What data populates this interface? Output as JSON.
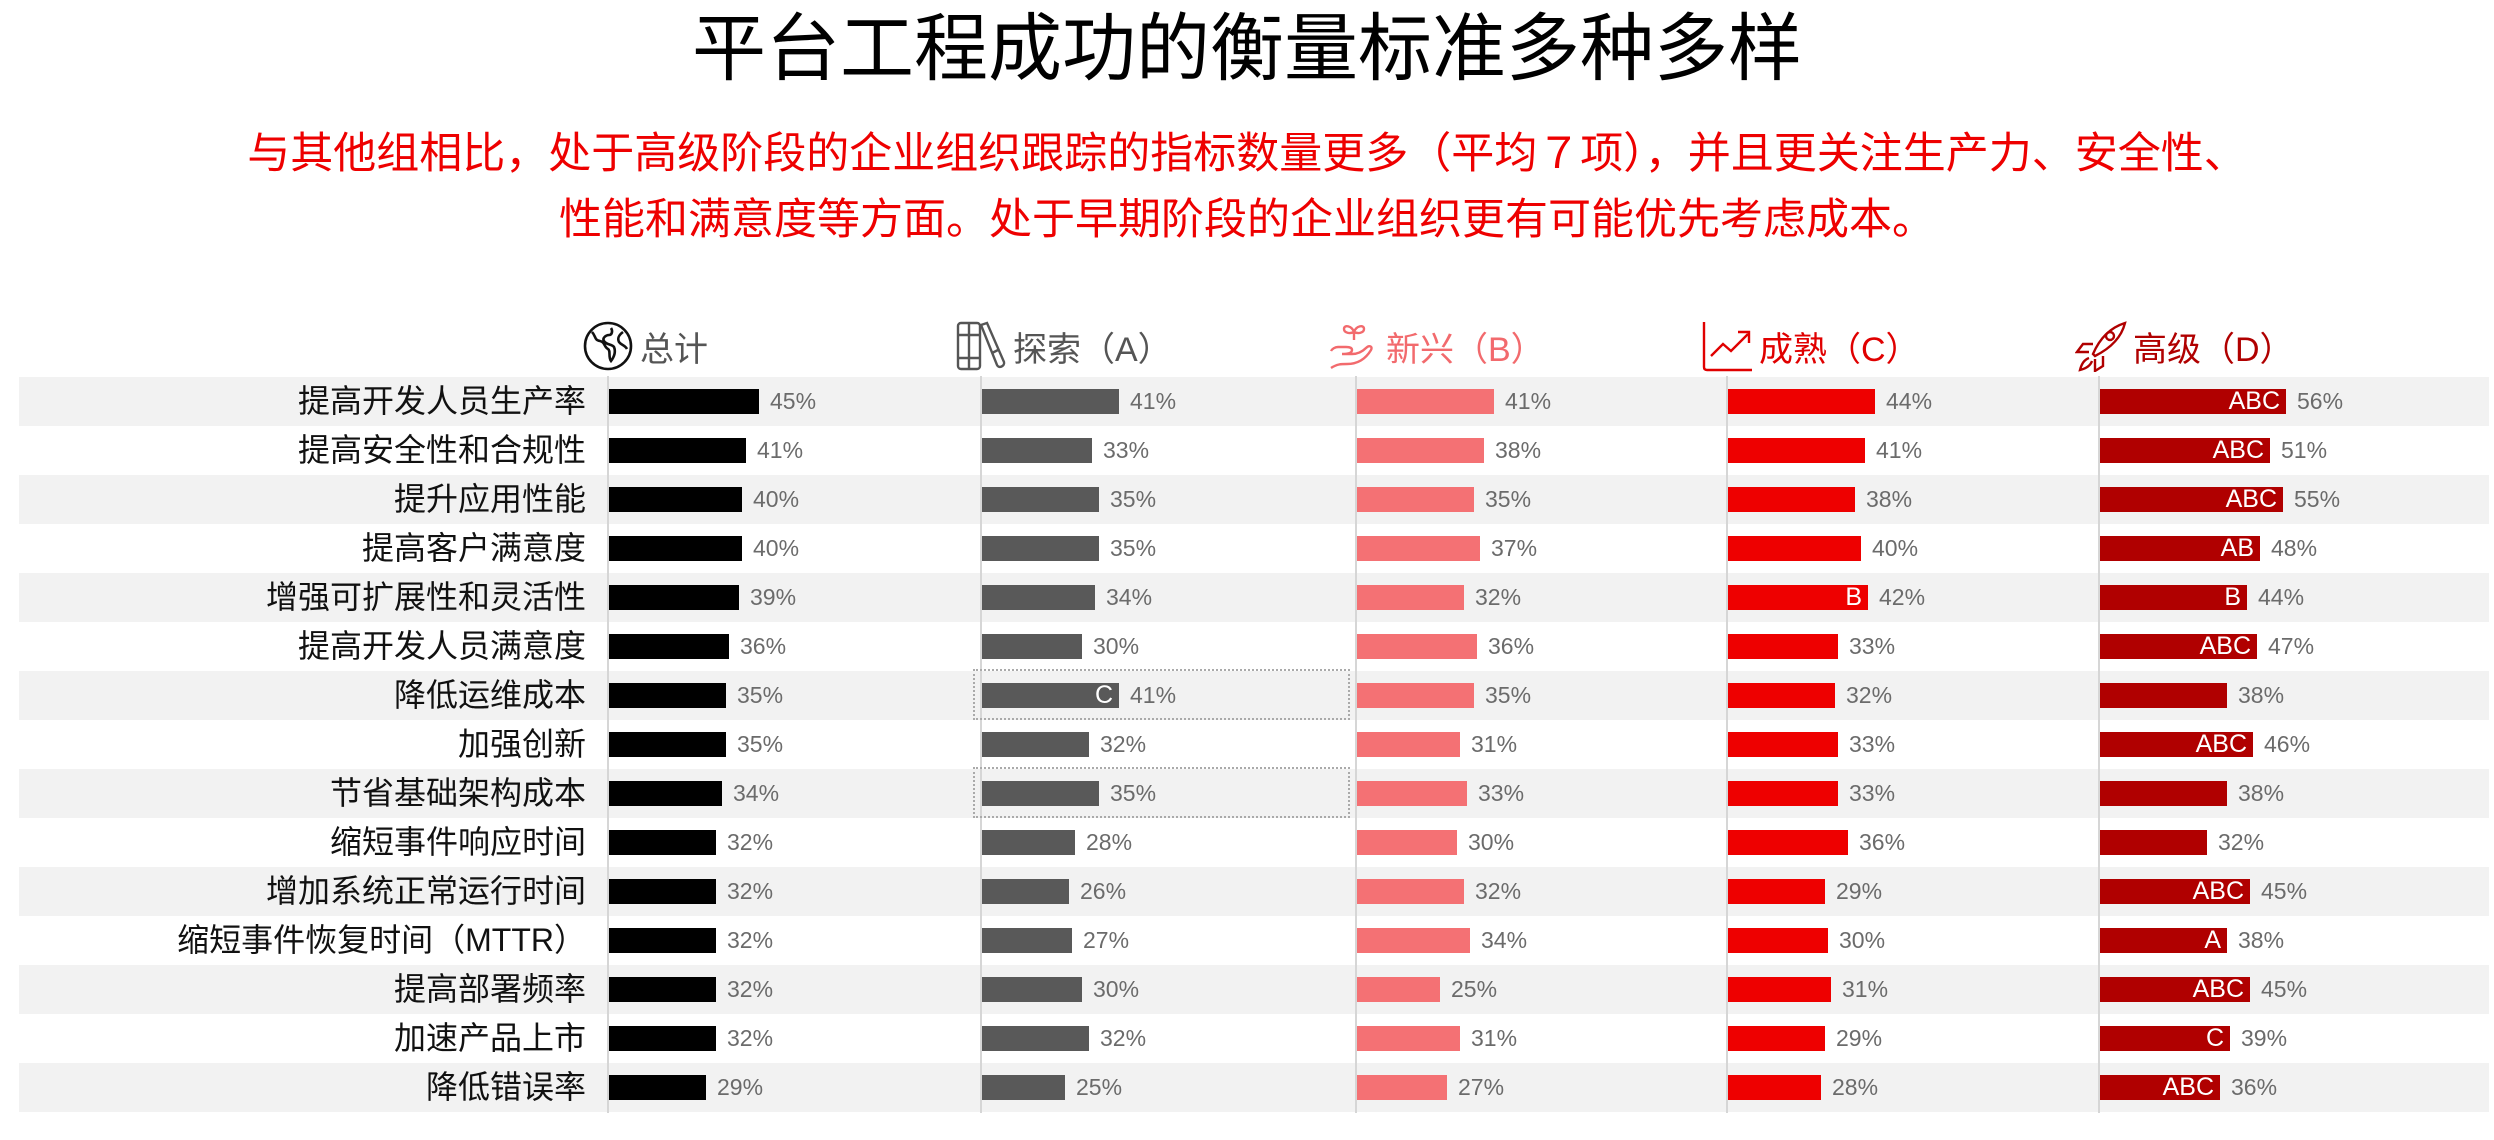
{
  "title": "平台工程成功的衡量标准多种多样",
  "subtitle_lines": [
    "与其他组相比，处于高级阶段的企业组织跟踪的指标数量更多（平均７项），并且更关注生产力、安全性、",
    "性能和满意度等方面。处于早期阶段的企业组织更有可能优先考虑成本。"
  ],
  "columns": [
    {
      "key": "total",
      "label": "总计",
      "icon": "globe-icon",
      "color": "#000000",
      "text_color": "#555555"
    },
    {
      "key": "A",
      "label": "探索（A）",
      "icon": "books-icon",
      "color": "#595959",
      "text_color": "#555555"
    },
    {
      "key": "B",
      "label": "新兴（B）",
      "icon": "sprout-hand-icon",
      "color": "#f47174",
      "text_color": "#f26a6d"
    },
    {
      "key": "C",
      "label": "成熟（C）",
      "icon": "growth-chart-icon",
      "color": "#ee0000",
      "text_color": "#e00000"
    },
    {
      "key": "D",
      "label": "高级（D）",
      "icon": "rocket-icon",
      "color": "#b00000",
      "text_color": "#b00000"
    }
  ],
  "chart_data": {
    "type": "bar",
    "orientation": "horizontal",
    "title": "平台工程成功的衡量标准多种多样",
    "subtitle": "与其他组相比，处于高级阶段的企业组织跟踪的指标数量更多（平均７项），并且更关注生产力、安全性、性能和满意度等方面。处于早期阶段的企业组织更有可能优先考虑成本。",
    "unit": "%",
    "categories": [
      "提高开发人员生产率",
      "提高安全性和合规性",
      "提升应用性能",
      "提高客户满意度",
      "增强可扩展性和灵活性",
      "提高开发人员满意度",
      "降低运维成本",
      "加强创新",
      "节省基础架构成本",
      "缩短事件响应时间",
      "增加系统正常运行时间",
      "缩短事件恢复时间（MTTR）",
      "提高部署频率",
      "加速产品上市",
      "降低错误率"
    ],
    "series": [
      {
        "name": "总计",
        "values": [
          45,
          41,
          40,
          40,
          39,
          36,
          35,
          35,
          34,
          32,
          32,
          32,
          32,
          32,
          29
        ],
        "labels": [
          "",
          "",
          "",
          "",
          "",
          "",
          "",
          "",
          "",
          "",
          "",
          "",
          "",
          "",
          ""
        ]
      },
      {
        "name": "探索（A）",
        "values": [
          41,
          33,
          35,
          35,
          34,
          30,
          41,
          32,
          35,
          28,
          26,
          27,
          30,
          32,
          25
        ],
        "labels": [
          "",
          "",
          "",
          "",
          "",
          "",
          "C",
          "",
          "",
          "",
          "",
          "",
          "",
          "",
          ""
        ]
      },
      {
        "name": "新兴（B）",
        "values": [
          41,
          38,
          35,
          37,
          32,
          36,
          35,
          31,
          33,
          30,
          32,
          34,
          25,
          31,
          27
        ],
        "labels": [
          "",
          "",
          "",
          "",
          "",
          "",
          "",
          "",
          "",
          "",
          "",
          "",
          "",
          "",
          ""
        ]
      },
      {
        "name": "成熟（C）",
        "values": [
          44,
          41,
          38,
          40,
          42,
          33,
          32,
          33,
          33,
          36,
          29,
          30,
          31,
          29,
          28
        ],
        "labels": [
          "",
          "",
          "",
          "",
          "B",
          "",
          "",
          "",
          "",
          "",
          "",
          "",
          "",
          "",
          ""
        ]
      },
      {
        "name": "高级（D）",
        "values": [
          56,
          51,
          55,
          48,
          44,
          47,
          38,
          46,
          38,
          32,
          45,
          38,
          45,
          39,
          36
        ],
        "labels": [
          "ABC",
          "ABC",
          "ABC",
          "AB",
          "B",
          "ABC",
          "",
          "ABC",
          "",
          "",
          "ABC",
          "A",
          "ABC",
          "C",
          "ABC"
        ]
      }
    ],
    "highlighted_cells": [
      {
        "series": "探索（A）",
        "category": "降低运维成本",
        "style": "dotted-box"
      },
      {
        "series": "探索（A）",
        "category": "节省基础架构成本",
        "style": "dotted-box"
      }
    ],
    "xlabel": "",
    "ylabel": "",
    "grid": false,
    "legend_position": "top (column headers)"
  }
}
